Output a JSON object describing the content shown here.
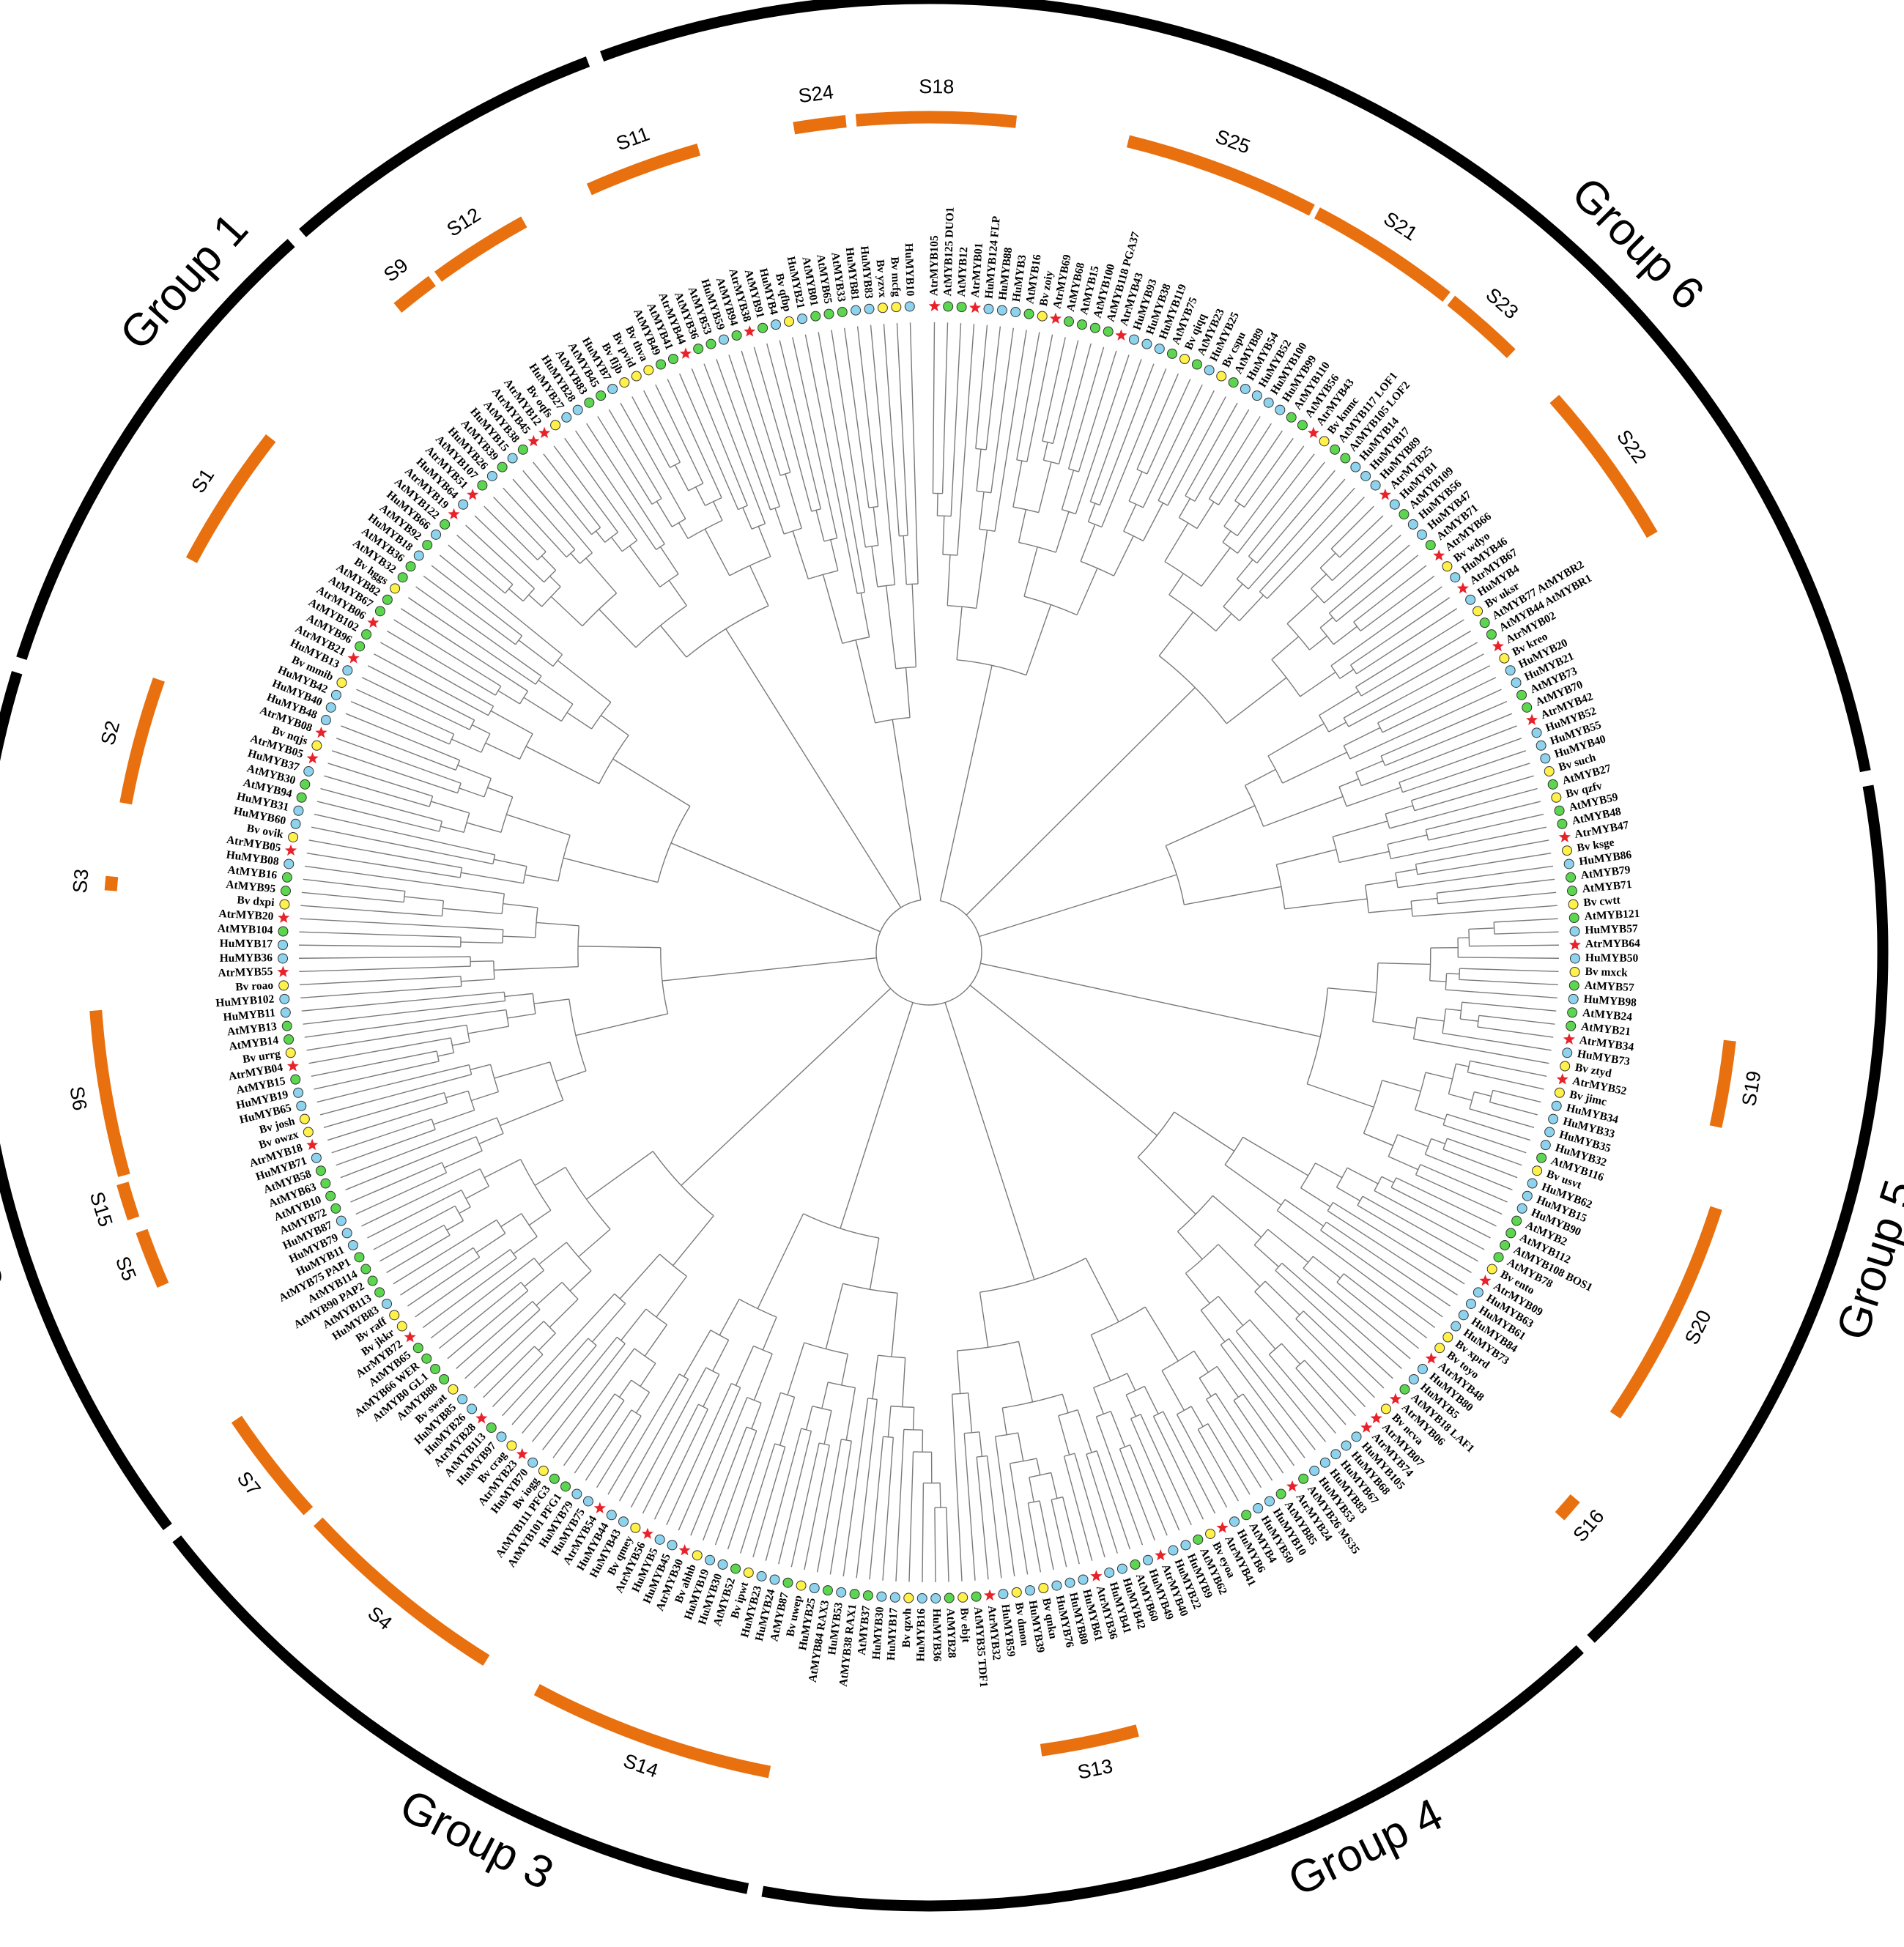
{
  "figure": {
    "type": "circular phylogenetic tree",
    "colors": {
      "group_ring": "#000000",
      "subgroup_arc": "#E8700F",
      "branch": "#7a7a7a",
      "marker_At": "#5DD64F",
      "marker_Hu": "#8ED3EE",
      "marker_Bv": "#FFF04A",
      "marker_Atr": "#E8222A",
      "label": "#000000"
    },
    "markers": {
      "circle_green": "circle marker (green)",
      "circle_blue": "circle marker (light blue)",
      "circle_yellow": "circle marker (yellow)",
      "star_red": "star marker (red)"
    }
  },
  "groups": [
    {
      "id": "g1",
      "label": "Group 1"
    },
    {
      "id": "g2",
      "label": "Group 2"
    },
    {
      "id": "g3",
      "label": "Group 3"
    },
    {
      "id": "g4",
      "label": "Group 4"
    },
    {
      "id": "g5",
      "label": "Group 5"
    },
    {
      "id": "g6",
      "label": "Group 6"
    },
    {
      "id": "g7",
      "label": "Group 7"
    }
  ],
  "subgroups": [
    {
      "id": "s18",
      "label": "S18"
    },
    {
      "id": "s24",
      "label": "S24"
    },
    {
      "id": "s25",
      "label": "S25"
    },
    {
      "id": "s21",
      "label": "S21"
    },
    {
      "id": "s23",
      "label": "S23"
    },
    {
      "id": "s22",
      "label": "S22"
    },
    {
      "id": "s19",
      "label": "S19"
    },
    {
      "id": "s20",
      "label": "S20"
    },
    {
      "id": "s16",
      "label": "S16"
    },
    {
      "id": "s13",
      "label": "S13"
    },
    {
      "id": "s14",
      "label": "S14"
    },
    {
      "id": "s4",
      "label": "S4"
    },
    {
      "id": "s7",
      "label": "S7"
    },
    {
      "id": "s5",
      "label": "S5"
    },
    {
      "id": "s15",
      "label": "S15"
    },
    {
      "id": "s6",
      "label": "S6"
    },
    {
      "id": "s3",
      "label": "S3"
    },
    {
      "id": "s2",
      "label": "S2"
    },
    {
      "id": "s1",
      "label": "S1"
    },
    {
      "id": "s9",
      "label": "S9"
    },
    {
      "id": "s12",
      "label": "S12"
    },
    {
      "id": "s11",
      "label": "S11"
    }
  ],
  "leaves": [
    "AtrMYB105",
    "AtMYB125 DUO1",
    "AtMYB12",
    "AtrMYB01",
    "HuMYB124 FLP",
    "HuMYB88",
    "HuMYB3",
    "AtMYB16",
    "Bv zoiy",
    "AtrMYB69",
    "AtMYB68",
    "AtMYB15",
    "AtMYB100",
    "AtMYB118 PGA37",
    "AtrMYB43",
    "HuMYB93",
    "HuMYB38",
    "HuMYB119",
    "AtMYB75",
    "Bv qiqq",
    "AtMYB23",
    "HuMYB25",
    "Bv cspu",
    "AtMYB89",
    "HuMYB54",
    "HuMYB52",
    "HuMYB100",
    "HuMYB99",
    "AtMYB110",
    "AtMYB56",
    "AtrMYB43",
    "Bv knmc",
    "AtMYB117 LOF1",
    "AtMYB105 LOF2",
    "HuMYB14",
    "HuMYB17",
    "HuMYB89",
    "AtrMYB25",
    "HuMYB1",
    "AtMYB109",
    "HuMYB56",
    "HuMYB47",
    "AtMYB71",
    "AtrMYB66",
    "Bv wdyo",
    "HuMYB46",
    "AtrMYB67",
    "HuMYB4",
    "Bv uksr",
    "AtMYB77 AtMYBR2",
    "AtMYB44 AtMYBR1",
    "AtrMYB02",
    "Bv kreo",
    "HuMYB20",
    "HuMYB21",
    "AtMYB73",
    "AtMYB70",
    "AtrMYB42",
    "HuMYB52",
    "HuMYB55",
    "HuMYB40",
    "Bv such",
    "AtMYB27",
    "Bv qzfv",
    "AtMYB59",
    "AtMYB48",
    "AtrMYB47",
    "Bv ksge",
    "HuMYB86",
    "AtMYB79",
    "AtMYB71",
    "Bv cwtt",
    "AtMYB121",
    "HuMYB57",
    "AtrMYB64",
    "HuMYB50",
    "Bv mxck",
    "AtMYB57",
    "HuMYB98",
    "AtMYB24",
    "AtMYB21",
    "AtrMYB34",
    "HuMYB73",
    "Bv ztyd",
    "AtrMYB52",
    "Bv jimc",
    "HuMYB34",
    "HuMYB33",
    "HuMYB35",
    "HuMYB32",
    "AtMYB116",
    "Bv usvt",
    "HuMYB62",
    "HuMYB15",
    "HuMYB90",
    "AtMYB2",
    "AtMYB112",
    "AtMYB108 BOS1",
    "AtMYB78",
    "Bv ento",
    "AtrMYB09",
    "HuMYB63",
    "HuMYB61",
    "HuMYB84",
    "HuMYB73",
    "Bv xprd",
    "Bv toyo",
    "AtrMYB48",
    "HuMYB80",
    "HuMYB5",
    "AtMYB18 LAF1",
    "AtrMYB06",
    "Bv ncva",
    "AtrMYB07",
    "AtrMYB74",
    "HuMYB105",
    "HuMYB68",
    "HuMYB67",
    "HuMYB83",
    "HuMYB53",
    "AtMYB26 MS35",
    "AtrMYB24",
    "AtMYB85",
    "HuMYB10",
    "HuMYB50",
    "AtMYB4",
    "HuMYB6",
    "AtrMYB41",
    "Bv eyoa",
    "AtMYB62",
    "HuMYB9",
    "HuMYB22",
    "AtrMYB40",
    "HuMYB49",
    "AtMYB60",
    "HuMYB42",
    "HuMYB41",
    "AtrMYB36",
    "HuMYB61",
    "HuMYB80",
    "HuMYB76",
    "Bv qnkn",
    "HuMYB39",
    "Bv dmon",
    "HuMYB59",
    "AtrMYB32",
    "AtMYB35 TDF1",
    "Bv ebjt",
    "AtMYB28",
    "HuMYB36",
    "HuMYB16",
    "Bv qzvh",
    "HuMYB17",
    "HuMYB30",
    "AtMYB37",
    "AtMYB38 RAX1",
    "HuMYB53",
    "AtMYB84 RAX3",
    "HuMYB25",
    "Bv uwep",
    "AtMYB87",
    "HuMYB24",
    "HuMYB23",
    "Bv ipwt",
    "AtMYB52",
    "HuMYB30",
    "HuMYB19",
    "Bv ahhb",
    "AtrMYB30",
    "HuMYB45",
    "HuMYB5",
    "AtrMYB56",
    "Bv qmey",
    "HuMYB43",
    "HuMYB44",
    "AtrMYB54",
    "HuMYB75",
    "HuMYB79",
    "AtMYB101 PFG1",
    "AtMYB111 PFG3",
    "Bv iogg",
    "HuMYB70",
    "AtrMYB23",
    "Bv crag",
    "HuMYB97",
    "AtMYB113",
    "AtrMYB28",
    "HuMYB26",
    "HuMYB85",
    "Bv swat",
    "AtMYB88",
    "AtMYB0 GL1",
    "AtMYB66 WER",
    "AtMYB65",
    "AtrMYB72",
    "Bv jkkr",
    "Bv raff",
    "HuMYB83",
    "AtMYB113",
    "AtMYB90 PAP2",
    "AtMYB114",
    "AtMYB75 PAP1",
    "HuMYB11",
    "HuMYB79",
    "HuMYB87",
    "AtMYB72",
    "AtMYB10",
    "AtMYB63",
    "AtMYB58",
    "HuMYB71",
    "AtrMYB18",
    "Bv owzx",
    "Bv josh",
    "HuMYB65",
    "HuMYB19",
    "AtMYB15",
    "AtrMYB04",
    "Bv urrg",
    "AtMYB14",
    "AtMYB13",
    "HuMYB11",
    "HuMYB102",
    "Bv roao",
    "AtrMYB55",
    "HuMYB36",
    "HuMYB17",
    "AtMYB104",
    "AtrMYB20",
    "Bv dxpi",
    "AtMYB95",
    "AtMYB16",
    "HuMYB08",
    "AtrMYB05",
    "Bv ovik",
    "HuMYB60",
    "HuMYB31",
    "AtMYB94",
    "AtMYB30",
    "HuMYB37",
    "AtrMYB05",
    "Bv nqjs",
    "AtrMYB08",
    "HuMYB48",
    "HuMYB40",
    "HuMYB42",
    "Bv mmib",
    "HuMYB13",
    "AtrMYB21",
    "AtMYB96",
    "AtMYB102",
    "AtrMYB06",
    "AtMYB67",
    "AtMYB82",
    "Bv hggs",
    "AtMYB32",
    "AtMYB36",
    "HuMYB18",
    "AtMYB92",
    "HuMYB66",
    "AtMYB122",
    "AtrMYB19",
    "HuMYB64",
    "AtrMYB51",
    "AtMYB107",
    "HuMYB26",
    "AtMYB39",
    "HuMYB15",
    "AtMYB38",
    "AtrMYB45",
    "AtrMYB12",
    "Bv oqfs",
    "HuMYB27",
    "HuMYB28",
    "AtMYB83",
    "AtMYB45",
    "HuMYB7",
    "Bv fljb",
    "Bv pvid",
    "Bv thva",
    "AtMYB49",
    "AtMYB41",
    "AtrMYB44",
    "AtMYB36",
    "AtMYB53",
    "HuMYB59",
    "AtMYB94",
    "AtrMYB38",
    "AtMYB91",
    "HuMYB4",
    "Bv qfbp",
    "HuMYB21",
    "AtMYB01",
    "AtMYB65",
    "AtMYB33",
    "HuMYB81",
    "HuMYB83",
    "Bv yzvx",
    "Bv mcfg",
    "HuMYB10"
  ]
}
